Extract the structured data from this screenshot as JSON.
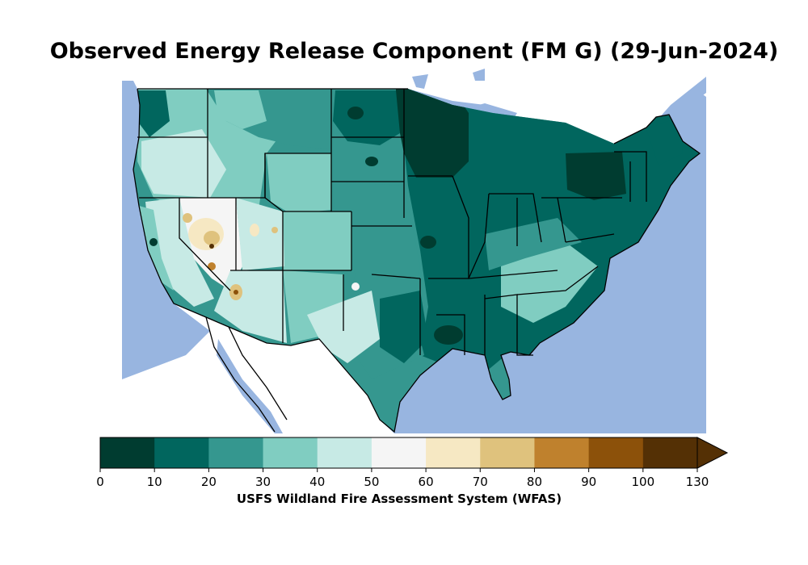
{
  "title": "Observed Energy Release Component (FM G) (29-Jun-2024)",
  "colorbar": {
    "label": "USFS Wildland Fire Assessment System (WFAS)",
    "ticks": [
      "0",
      "10",
      "20",
      "30",
      "40",
      "50",
      "60",
      "70",
      "80",
      "90",
      "100",
      "130"
    ],
    "bins": [
      {
        "min": 0,
        "max": 10,
        "color": "#003c30"
      },
      {
        "min": 10,
        "max": 20,
        "color": "#01665e"
      },
      {
        "min": 20,
        "max": 30,
        "color": "#35978f"
      },
      {
        "min": 30,
        "max": 40,
        "color": "#80cdc1"
      },
      {
        "min": 40,
        "max": 50,
        "color": "#c7eae5"
      },
      {
        "min": 50,
        "max": 60,
        "color": "#f5f5f5"
      },
      {
        "min": 60,
        "max": 70,
        "color": "#f6e8c3"
      },
      {
        "min": 70,
        "max": 80,
        "color": "#dfc27d"
      },
      {
        "min": 80,
        "max": 90,
        "color": "#bf812d"
      },
      {
        "min": 90,
        "max": 100,
        "color": "#8c510a"
      },
      {
        "min": 100,
        "max": 130,
        "color": "#543005"
      }
    ],
    "extend": "max"
  },
  "colors": {
    "water": "#98b5e0",
    "land_background": "#ffffff",
    "borders": "#000000"
  }
}
